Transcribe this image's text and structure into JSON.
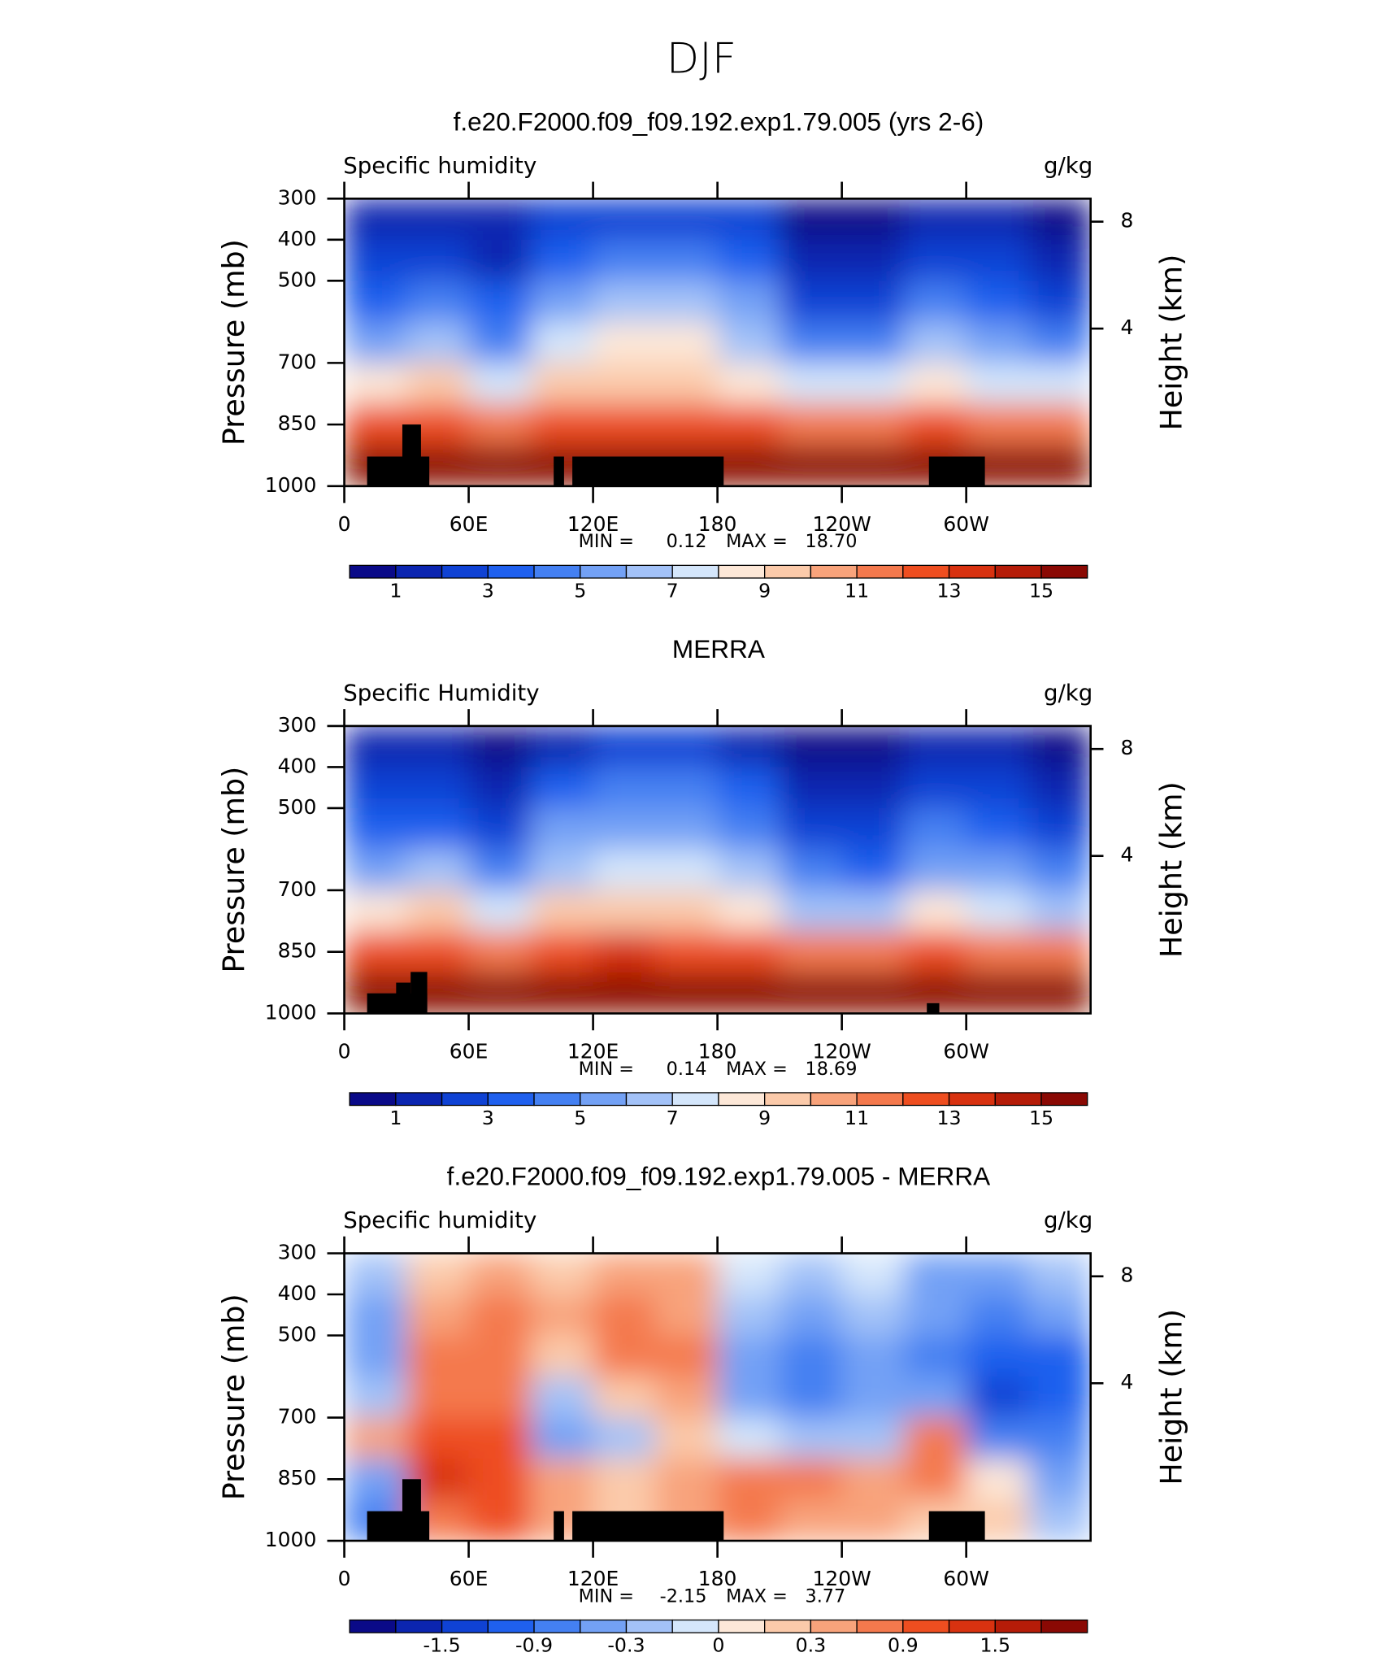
{
  "title": "DJF",
  "chart_data": [
    {
      "type": "contour",
      "title": "f.e20.F2000.f09_f09.192.exp1.79.005 (yrs 2-6)",
      "variable": "Specific humidity",
      "units": "g/kg",
      "ylabel": "Pressure (mb)",
      "y2label": "Height (km)",
      "x": [
        15,
        45,
        75,
        105,
        135,
        165,
        195,
        225,
        255,
        285,
        315,
        345
      ],
      "y": [
        350,
        450,
        550,
        650,
        750,
        850,
        950
      ],
      "z": [
        [
          1.2,
          1.5,
          1.0,
          2.2,
          2.8,
          2.8,
          2.0,
          0.8,
          0.6,
          1.5,
          1.2,
          0.8
        ],
        [
          2.2,
          2.5,
          1.8,
          3.8,
          4.6,
          4.6,
          3.4,
          1.6,
          1.3,
          2.8,
          2.3,
          1.6
        ],
        [
          3.6,
          4.0,
          3.0,
          5.5,
          6.3,
          6.3,
          5.0,
          2.7,
          2.4,
          4.2,
          3.6,
          2.8
        ],
        [
          5.4,
          6.6,
          4.8,
          7.3,
          8.0,
          8.0,
          6.8,
          4.2,
          4.0,
          6.0,
          5.2,
          4.3
        ],
        [
          8.2,
          9.5,
          7.6,
          9.4,
          9.8,
          9.8,
          8.8,
          7.0,
          7.0,
          8.6,
          7.8,
          7.0
        ],
        [
          12.0,
          12.8,
          11.5,
          12.5,
          12.6,
          12.4,
          12.0,
          11.0,
          11.0,
          12.0,
          11.5,
          11.0
        ],
        [
          15.5,
          16.0,
          15.5,
          15.8,
          15.8,
          15.6,
          15.3,
          15.0,
          15.0,
          15.5,
          15.2,
          15.0
        ]
      ],
      "terrain": [
        [
          11,
          41,
          928
        ],
        [
          28,
          37,
          850
        ],
        [
          101,
          106,
          928
        ],
        [
          110,
          183,
          928
        ],
        [
          282,
          309,
          928
        ]
      ],
      "xlim": [
        0,
        360
      ],
      "xticks": [
        0,
        {
          "value": 60,
          "label": "60E"
        },
        {
          "value": 120,
          "label": "120E"
        },
        180,
        {
          "value": 240,
          "label": "120W"
        },
        {
          "value": 300,
          "label": "60W"
        }
      ],
      "ylim": [
        1000,
        300
      ],
      "yticks": [
        300,
        400,
        500,
        700,
        850,
        1000
      ],
      "y2ticks": [
        8,
        4
      ],
      "min_text": "MIN =",
      "min": 0.12,
      "max_text": "MAX =",
      "max": {
        "value": 18.7,
        "label": "18.70"
      },
      "levels": [
        1,
        2,
        3,
        4,
        5,
        6,
        7,
        8,
        9,
        10,
        11,
        12,
        13,
        14,
        15
      ],
      "colorbar_ticks": [
        1,
        3,
        5,
        7,
        9,
        11,
        13,
        15
      ],
      "colors": [
        "#0a0a88",
        "#0b25b0",
        "#0f42d4",
        "#1f60ee",
        "#4480f2",
        "#73a1f5",
        "#a3c2f8",
        "#d4e6fb",
        "#fde8d8",
        "#fbcaaa",
        "#f8a37b",
        "#f4794d",
        "#ee4e20",
        "#d83210",
        "#b51c08",
        "#8a0904"
      ]
    },
    {
      "type": "contour",
      "title": "MERRA",
      "variable": "Specific Humidity",
      "units": "g/kg",
      "ylabel": "Pressure (mb)",
      "y2label": "Height (km)",
      "x": [
        15,
        45,
        75,
        105,
        135,
        165,
        195,
        225,
        255,
        285,
        315,
        345
      ],
      "y": [
        350,
        450,
        550,
        650,
        750,
        850,
        950
      ],
      "z": [
        [
          1.0,
          1.3,
          0.9,
          1.8,
          2.4,
          2.4,
          1.7,
          0.7,
          0.6,
          1.4,
          1.0,
          0.7
        ],
        [
          2.0,
          2.2,
          1.6,
          3.4,
          4.2,
          4.2,
          3.1,
          1.5,
          1.2,
          2.6,
          2.0,
          1.4
        ],
        [
          3.4,
          3.6,
          2.8,
          5.0,
          5.9,
          5.9,
          4.7,
          2.5,
          2.2,
          4.0,
          3.4,
          2.6
        ],
        [
          5.2,
          6.0,
          4.4,
          6.9,
          7.6,
          7.6,
          6.5,
          4.0,
          3.8,
          5.8,
          5.0,
          4.1
        ],
        [
          8.0,
          9.0,
          7.4,
          9.2,
          9.6,
          9.6,
          8.6,
          6.9,
          6.8,
          8.4,
          7.6,
          6.8
        ],
        [
          12.2,
          12.8,
          11.8,
          12.8,
          13.0,
          12.8,
          12.4,
          11.4,
          11.2,
          12.2,
          11.8,
          11.2
        ],
        [
          15.8,
          16.2,
          15.8,
          16.0,
          16.4,
          16.6,
          16.2,
          15.6,
          15.4,
          15.8,
          15.6,
          15.3
        ]
      ],
      "terrain": [
        [
          11,
          40,
          951
        ],
        [
          25,
          32,
          925
        ],
        [
          32,
          40,
          899
        ],
        [
          281,
          287,
          975
        ]
      ],
      "xlim": [
        0,
        360
      ],
      "xticks": [
        0,
        {
          "value": 60,
          "label": "60E"
        },
        {
          "value": 120,
          "label": "120E"
        },
        180,
        {
          "value": 240,
          "label": "120W"
        },
        {
          "value": 300,
          "label": "60W"
        }
      ],
      "ylim": [
        1000,
        300
      ],
      "yticks": [
        300,
        400,
        500,
        700,
        850,
        1000
      ],
      "y2ticks": [
        8,
        4
      ],
      "min_text": "MIN =",
      "min": 0.14,
      "max_text": "MAX =",
      "max": 18.69,
      "levels": [
        1,
        2,
        3,
        4,
        5,
        6,
        7,
        8,
        9,
        10,
        11,
        12,
        13,
        14,
        15
      ],
      "colorbar_ticks": [
        1,
        3,
        5,
        7,
        9,
        11,
        13,
        15
      ],
      "colors": [
        "#0a0a88",
        "#0b25b0",
        "#0f42d4",
        "#1f60ee",
        "#4480f2",
        "#73a1f5",
        "#a3c2f8",
        "#d4e6fb",
        "#fde8d8",
        "#fbcaaa",
        "#f8a37b",
        "#f4794d",
        "#ee4e20",
        "#d83210",
        "#b51c08",
        "#8a0904"
      ]
    },
    {
      "type": "contour",
      "title": "f.e20.F2000.f09_f09.192.exp1.79.005 - MERRA",
      "variable": "Specific humidity",
      "units": "g/kg",
      "ylabel": "Pressure (mb)",
      "y2label": "Height (km)",
      "x": [
        15,
        45,
        75,
        105,
        135,
        165,
        195,
        225,
        255,
        285,
        315,
        345
      ],
      "y": [
        350,
        450,
        550,
        650,
        750,
        850,
        950
      ],
      "z": [
        [
          -0.3,
          0.2,
          0.4,
          0.2,
          0.4,
          0.3,
          -0.1,
          -0.2,
          -0.1,
          -0.4,
          -0.4,
          -0.3
        ],
        [
          -0.4,
          0.4,
          0.6,
          0.3,
          0.6,
          0.5,
          -0.2,
          -0.4,
          -0.3,
          -0.6,
          -0.7,
          -0.6
        ],
        [
          -0.4,
          0.6,
          0.7,
          0.1,
          0.8,
          0.7,
          -0.4,
          -0.7,
          -0.5,
          -0.8,
          -1.2,
          -1.0
        ],
        [
          -0.2,
          0.8,
          0.8,
          -0.3,
          0.2,
          0.5,
          -0.4,
          -0.8,
          -0.5,
          -0.6,
          -1.3,
          -1.1
        ],
        [
          0.3,
          1.0,
          0.9,
          -0.4,
          -0.2,
          0.2,
          -0.1,
          -0.2,
          -0.2,
          0.6,
          -0.8,
          -0.7
        ],
        [
          -0.6,
          1.2,
          1.0,
          0.3,
          0.1,
          0.4,
          0.8,
          0.6,
          0.5,
          0.8,
          0.0,
          -0.4
        ],
        [
          -0.8,
          0.8,
          0.9,
          0.4,
          0.2,
          0.3,
          0.6,
          0.4,
          0.3,
          0.2,
          0.1,
          -0.3
        ]
      ],
      "terrain": [
        [
          11,
          41,
          928
        ],
        [
          28,
          37,
          850
        ],
        [
          101,
          106,
          928
        ],
        [
          110,
          183,
          928
        ],
        [
          282,
          309,
          928
        ]
      ],
      "xlim": [
        0,
        360
      ],
      "xticks": [
        0,
        {
          "value": 60,
          "label": "60E"
        },
        {
          "value": 120,
          "label": "120E"
        },
        180,
        {
          "value": 240,
          "label": "120W"
        },
        {
          "value": 300,
          "label": "60W"
        }
      ],
      "ylim": [
        1000,
        300
      ],
      "yticks": [
        300,
        400,
        500,
        700,
        850,
        1000
      ],
      "y2ticks": [
        8,
        4
      ],
      "min_text": "MIN =",
      "min": -2.15,
      "max_text": "MAX =",
      "max": 3.77,
      "levels": [
        -1.8,
        -1.5,
        -1.2,
        -0.9,
        -0.6,
        -0.3,
        -0.1,
        0,
        0.1,
        0.3,
        0.6,
        0.9,
        1.2,
        1.5,
        1.8
      ],
      "colorbar_ticks": [
        -1.5,
        -0.9,
        -0.3,
        0,
        0.3,
        0.9,
        1.5
      ],
      "colors": [
        "#0a0a88",
        "#0b25b0",
        "#0f42d4",
        "#1f60ee",
        "#4480f2",
        "#73a1f5",
        "#a3c2f8",
        "#d4e6fb",
        "#fde8d8",
        "#fbcaaa",
        "#f8a37b",
        "#f4794d",
        "#ee4e20",
        "#d83210",
        "#b51c08",
        "#8a0904"
      ]
    }
  ]
}
